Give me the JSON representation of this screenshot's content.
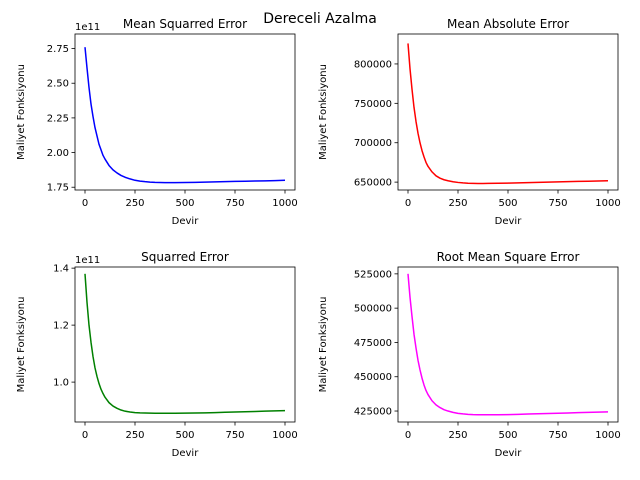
{
  "figure_title": "Dereceli Azalma",
  "chart_data": [
    {
      "type": "line",
      "title": "Mean Squarred Error",
      "xlabel": "Devir",
      "ylabel": "Maliyet Fonksiyonu",
      "offset_text": "1e11",
      "color": "#0000ff",
      "x_ticks": [
        0,
        250,
        500,
        750,
        1000
      ],
      "x_tick_labels": [
        "0",
        "250",
        "500",
        "750",
        "1000"
      ],
      "y_ticks": [
        1.75,
        2.0,
        2.25,
        2.5,
        2.75
      ],
      "y_tick_labels": [
        "1.75",
        "2.00",
        "2.25",
        "2.50",
        "2.75"
      ],
      "xlim": [
        -50,
        1050
      ],
      "ylim": [
        1.73,
        2.855
      ],
      "series": [
        {
          "x": [
            0,
            10,
            20,
            30,
            40,
            50,
            60,
            70,
            80,
            90,
            100,
            120,
            140,
            160,
            180,
            200,
            225,
            250,
            275,
            300,
            325,
            350,
            375,
            400,
            450,
            500,
            550,
            600,
            650,
            700,
            750,
            800,
            850,
            900,
            950,
            1000
          ],
          "y": [
            2.76,
            2.61,
            2.47,
            2.35,
            2.26,
            2.18,
            2.12,
            2.06,
            2.02,
            1.98,
            1.953,
            1.907,
            1.875,
            1.853,
            1.835,
            1.822,
            1.81,
            1.8,
            1.794,
            1.79,
            1.787,
            1.785,
            1.784,
            1.783,
            1.783,
            1.784,
            1.785,
            1.787,
            1.789,
            1.79,
            1.792,
            1.793,
            1.795,
            1.796,
            1.798,
            1.8
          ]
        }
      ]
    },
    {
      "type": "line",
      "title": "Mean Absolute Error",
      "xlabel": "Devir",
      "ylabel": "Maliyet Fonksiyonu",
      "offset_text": "",
      "color": "#ff0000",
      "x_ticks": [
        0,
        250,
        500,
        750,
        1000
      ],
      "x_tick_labels": [
        "0",
        "250",
        "500",
        "750",
        "1000"
      ],
      "y_ticks": [
        650000,
        700000,
        750000,
        800000
      ],
      "y_tick_labels": [
        "650000",
        "700000",
        "750000",
        "800000"
      ],
      "xlim": [
        -50,
        1050
      ],
      "ylim": [
        640000,
        838000
      ],
      "series": [
        {
          "x": [
            0,
            10,
            20,
            30,
            40,
            50,
            60,
            70,
            80,
            90,
            100,
            120,
            140,
            160,
            180,
            200,
            225,
            250,
            275,
            300,
            325,
            350,
            375,
            400,
            450,
            500,
            550,
            600,
            650,
            700,
            750,
            800,
            850,
            900,
            950,
            1000
          ],
          "y": [
            826000,
            794000,
            768000,
            745000,
            727000,
            712000,
            700000,
            690000,
            682000,
            675000,
            670000,
            663000,
            658000,
            655000,
            653000,
            651700,
            650500,
            649600,
            649000,
            648600,
            648400,
            648300,
            648300,
            648400,
            648600,
            648800,
            649100,
            649400,
            649700,
            650000,
            650300,
            650600,
            650900,
            651100,
            651400,
            651700
          ]
        }
      ]
    },
    {
      "type": "line",
      "title": "Squarred Error",
      "xlabel": "Devir",
      "ylabel": "Maliyet Fonksiyonu",
      "offset_text": "1e11",
      "color": "#008000",
      "x_ticks": [
        0,
        250,
        500,
        750,
        1000
      ],
      "x_tick_labels": [
        "0",
        "250",
        "500",
        "750",
        "1000"
      ],
      "y_ticks": [
        1.0,
        1.2,
        1.4
      ],
      "y_tick_labels": [
        "1.0",
        "1.2",
        "1.4"
      ],
      "xlim": [
        -50,
        1050
      ],
      "ylim": [
        0.86,
        1.404
      ],
      "series": [
        {
          "x": [
            0,
            10,
            20,
            30,
            40,
            50,
            60,
            70,
            80,
            90,
            100,
            120,
            140,
            160,
            180,
            200,
            225,
            250,
            275,
            300,
            325,
            350,
            375,
            400,
            450,
            500,
            550,
            600,
            650,
            700,
            750,
            800,
            850,
            900,
            950,
            1000
          ],
          "y": [
            1.38,
            1.28,
            1.2,
            1.14,
            1.09,
            1.05,
            1.02,
            0.995,
            0.975,
            0.96,
            0.947,
            0.928,
            0.916,
            0.908,
            0.902,
            0.898,
            0.895,
            0.893,
            0.892,
            0.8915,
            0.891,
            0.8905,
            0.8905,
            0.8905,
            0.8905,
            0.891,
            0.8915,
            0.892,
            0.893,
            0.894,
            0.895,
            0.896,
            0.897,
            0.898,
            0.899,
            0.9
          ]
        }
      ]
    },
    {
      "type": "line",
      "title": "Root Mean Square Error",
      "xlabel": "Devir",
      "ylabel": "Maliyet Fonksiyonu",
      "offset_text": "",
      "color": "#ff00ff",
      "x_ticks": [
        0,
        250,
        500,
        750,
        1000
      ],
      "x_tick_labels": [
        "0",
        "250",
        "500",
        "750",
        "1000"
      ],
      "y_ticks": [
        425000,
        450000,
        475000,
        500000,
        525000
      ],
      "y_tick_labels": [
        "425000",
        "450000",
        "475000",
        "500000",
        "525000"
      ],
      "xlim": [
        -50,
        1050
      ],
      "ylim": [
        417000,
        530000
      ],
      "series": [
        {
          "x": [
            0,
            10,
            20,
            30,
            40,
            50,
            60,
            70,
            80,
            90,
            100,
            120,
            140,
            160,
            180,
            200,
            225,
            250,
            275,
            300,
            325,
            350,
            375,
            400,
            450,
            500,
            550,
            600,
            650,
            700,
            750,
            800,
            850,
            900,
            950,
            1000
          ],
          "y": [
            525000,
            508000,
            494000,
            481000,
            471000,
            462000,
            455000,
            449000,
            444000,
            440000,
            437000,
            432500,
            429500,
            427500,
            426000,
            425000,
            424000,
            423300,
            422900,
            422600,
            422400,
            422300,
            422300,
            422300,
            422300,
            422400,
            422600,
            422800,
            423000,
            423200,
            423400,
            423600,
            423800,
            424000,
            424200,
            424400
          ]
        }
      ]
    }
  ]
}
